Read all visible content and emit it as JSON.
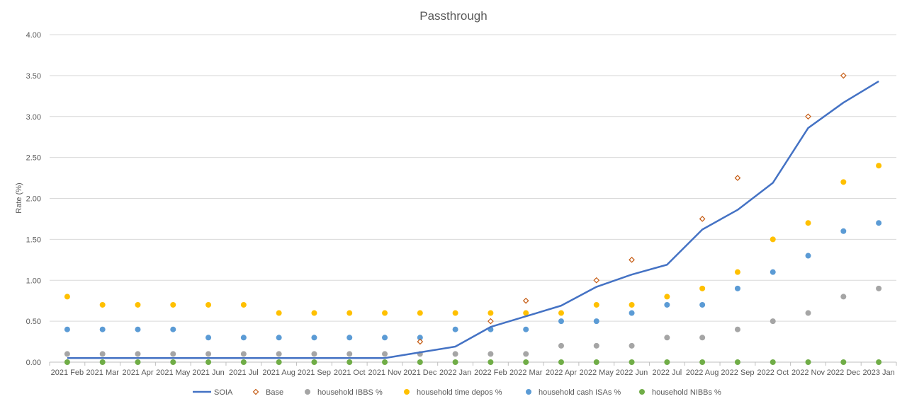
{
  "chart_data": {
    "type": "line",
    "title": "Passthrough",
    "xlabel": "",
    "ylabel": "Rate (%)",
    "ylim": [
      0,
      4
    ],
    "yticks": [
      "0.00",
      "0.50",
      "1.00",
      "1.50",
      "2.00",
      "2.50",
      "3.00",
      "3.50",
      "4.00"
    ],
    "grid": true,
    "legend_position": "bottom",
    "categories": [
      "2021 Feb",
      "2021 Mar",
      "2021 Apr",
      "2021 May",
      "2021 Jun",
      "2021 Jul",
      "2021 Aug",
      "2021 Sep",
      "2021 Oct",
      "2021 Nov",
      "2021 Dec",
      "2022 Jan",
      "2022 Feb",
      "2022 Mar",
      "2022 Apr",
      "2022 May",
      "2022 Jun",
      "2022 Jul",
      "2022 Aug",
      "2022 Sep",
      "2022 Oct",
      "2022 Nov",
      "2022 Dec",
      "2023 Jan"
    ],
    "series": [
      {
        "name": "SOIA",
        "kind": "line",
        "color": "#4472C4",
        "values": [
          0.05,
          0.05,
          0.05,
          0.05,
          0.05,
          0.05,
          0.05,
          0.05,
          0.05,
          0.05,
          0.12,
          0.19,
          0.43,
          0.56,
          0.69,
          0.92,
          1.07,
          1.19,
          1.62,
          1.86,
          2.19,
          2.86,
          3.17,
          3.43
        ]
      },
      {
        "name": "Base",
        "kind": "diamond",
        "color": "#C55A11",
        "values": [
          null,
          null,
          null,
          null,
          null,
          null,
          null,
          null,
          null,
          null,
          0.25,
          null,
          0.5,
          0.75,
          null,
          1.0,
          1.25,
          null,
          1.75,
          2.25,
          null,
          3.0,
          3.5,
          null
        ]
      },
      {
        "name": "household IBBS %",
        "kind": "dot",
        "color": "#A5A5A5",
        "values": [
          0.1,
          0.1,
          0.1,
          0.1,
          0.1,
          0.1,
          0.1,
          0.1,
          0.1,
          0.1,
          0.1,
          0.1,
          0.1,
          0.1,
          0.2,
          0.2,
          0.2,
          0.3,
          0.3,
          0.4,
          0.5,
          0.6,
          0.8,
          0.9
        ]
      },
      {
        "name": "household time depos %",
        "kind": "dot",
        "color": "#FFC000",
        "values": [
          0.8,
          0.7,
          0.7,
          0.7,
          0.7,
          0.7,
          0.6,
          0.6,
          0.6,
          0.6,
          0.6,
          0.6,
          0.6,
          0.6,
          0.6,
          0.7,
          0.7,
          0.8,
          0.9,
          1.1,
          1.5,
          1.7,
          2.2,
          2.4
        ]
      },
      {
        "name": "household cash ISAs %",
        "kind": "dot",
        "color": "#5B9BD5",
        "values": [
          0.4,
          0.4,
          0.4,
          0.4,
          0.3,
          0.3,
          0.3,
          0.3,
          0.3,
          0.3,
          0.3,
          0.4,
          0.4,
          0.4,
          0.5,
          0.5,
          0.6,
          0.7,
          0.7,
          0.9,
          1.1,
          1.3,
          1.6,
          1.7
        ]
      },
      {
        "name": "household NIBBs %",
        "kind": "dot",
        "color": "#70AD47",
        "values": [
          0,
          0,
          0,
          0,
          0,
          0,
          0,
          0,
          0,
          0,
          0,
          0,
          0,
          0,
          0,
          0,
          0,
          0,
          0,
          0,
          0,
          0,
          0,
          0
        ]
      }
    ]
  }
}
